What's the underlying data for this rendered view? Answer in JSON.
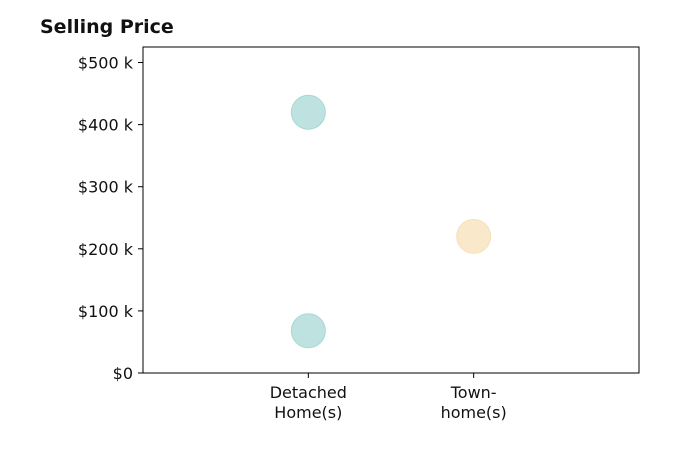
{
  "chart_data": {
    "type": "scatter",
    "title": "Selling Price",
    "xlabel": "",
    "ylabel": "",
    "categories": [
      [
        "Detached",
        "Home(s)"
      ],
      [
        "Town-",
        "home(s)"
      ]
    ],
    "y_ticks": [
      {
        "value": 0,
        "label": "$0"
      },
      {
        "value": 100000,
        "label": "$100 k"
      },
      {
        "value": 200000,
        "label": "$200 k"
      },
      {
        "value": 300000,
        "label": "$300 k"
      },
      {
        "value": 400000,
        "label": "$400 k"
      },
      {
        "value": 500000,
        "label": "$500 k"
      }
    ],
    "ylim": [
      0,
      525000
    ],
    "xlim": [
      -1,
      2
    ],
    "grid": false,
    "points": [
      {
        "category": 0,
        "y": 420000,
        "color": "#a8d8d4"
      },
      {
        "category": 0,
        "y": 68000,
        "color": "#a8d8d4"
      },
      {
        "category": 1,
        "y": 220000,
        "color": "#f7e2b8"
      }
    ]
  },
  "colors": {
    "detached": "#a8d8d4",
    "townhome": "#f7e2b8",
    "axis": "#000000"
  }
}
